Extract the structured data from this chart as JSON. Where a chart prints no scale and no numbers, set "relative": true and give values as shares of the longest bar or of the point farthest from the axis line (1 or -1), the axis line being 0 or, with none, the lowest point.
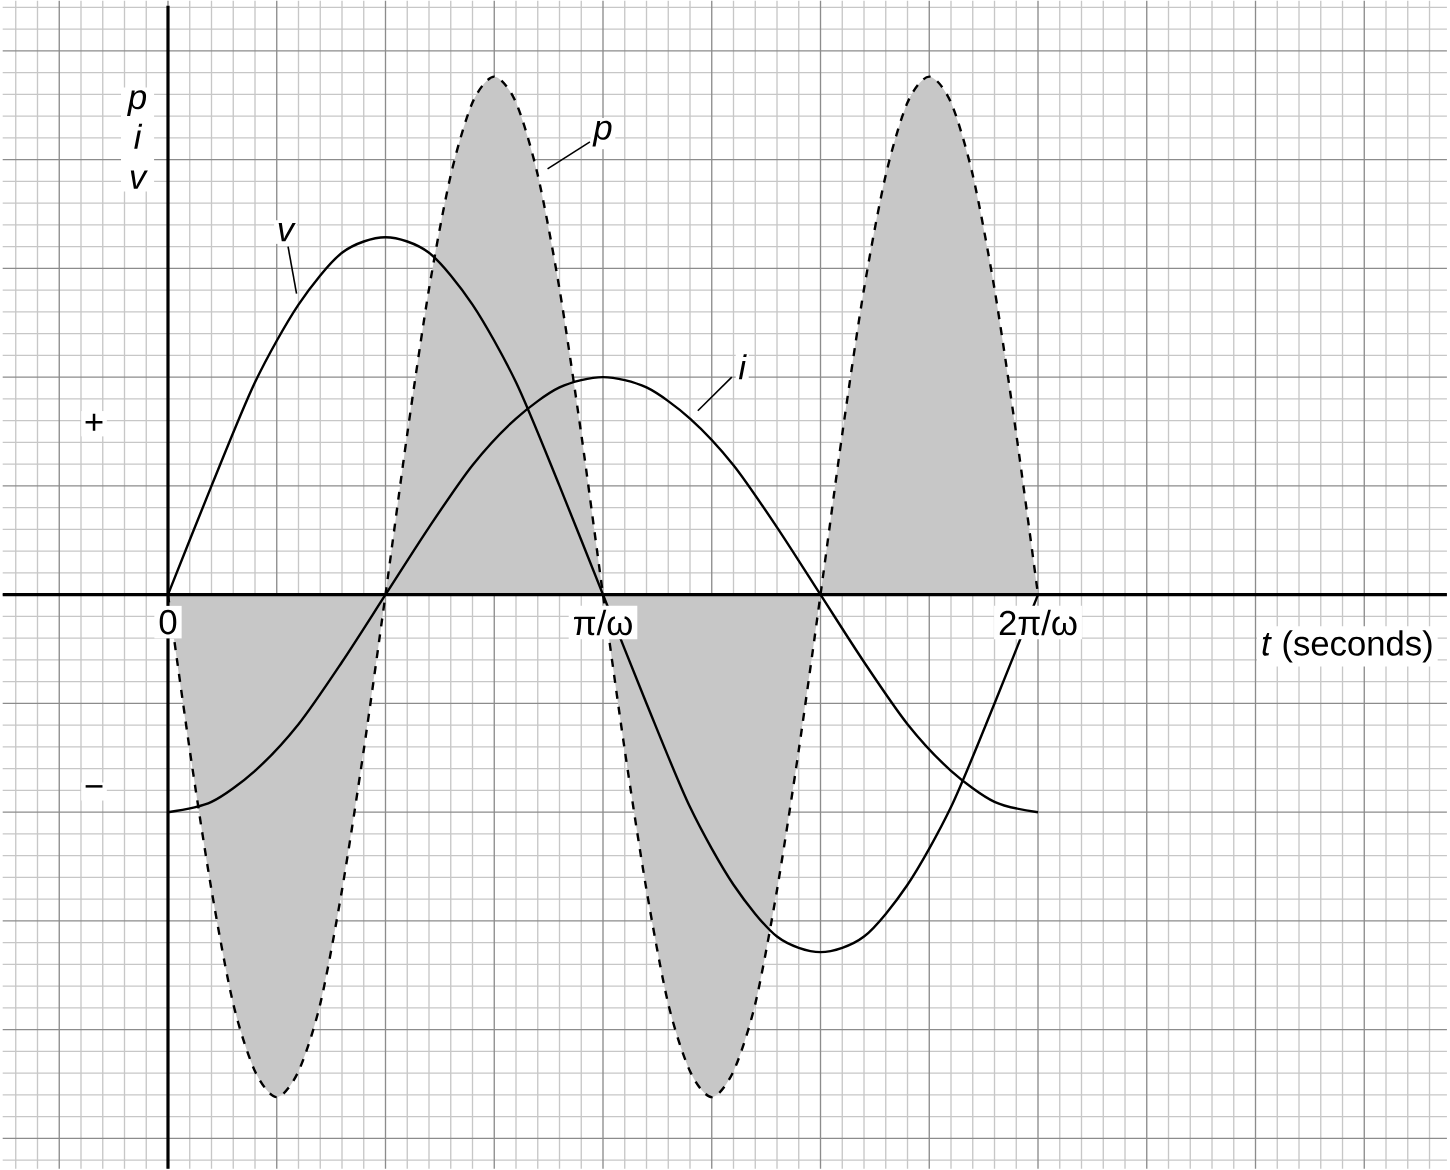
{
  "chart_data": {
    "type": "line",
    "relative": true,
    "ylabel": "p i v",
    "xlabel": "*t* (seconds)",
    "xlim": [
      -0.38,
      2.94
    ],
    "xticks": [
      {
        "value": 0,
        "label": "0"
      },
      {
        "value": 1,
        "label": "π/ω"
      },
      {
        "value": 2,
        "label": "2π/ω"
      }
    ],
    "grid": true,
    "marker": "none",
    "annotations": [
      "+",
      "−"
    ],
    "series": [
      {
        "name": "v",
        "color": "#000000",
        "line_style": "solid",
        "x": [
          0,
          0.1,
          0.2,
          0.3,
          0.4,
          0.5,
          0.6,
          0.7,
          0.8,
          0.9,
          1.0,
          1.1,
          1.2,
          1.3,
          1.4,
          1.5,
          1.6,
          1.7,
          1.8,
          1.9,
          2.0
        ],
        "values": [
          0,
          0.21,
          0.41,
          0.56,
          0.66,
          0.69,
          0.66,
          0.56,
          0.41,
          0.21,
          0,
          -0.21,
          -0.41,
          -0.56,
          -0.66,
          -0.69,
          -0.66,
          -0.56,
          -0.41,
          -0.21,
          0
        ]
      },
      {
        "name": "i",
        "color": "#000000",
        "line_style": "solid",
        "x": [
          0,
          0.1,
          0.2,
          0.3,
          0.4,
          0.5,
          0.6,
          0.7,
          0.8,
          0.9,
          1.0,
          1.1,
          1.2,
          1.3,
          1.4,
          1.5,
          1.6,
          1.7,
          1.8,
          1.9,
          2.0
        ],
        "values": [
          -0.42,
          -0.4,
          -0.34,
          -0.25,
          -0.13,
          0,
          0.13,
          0.25,
          0.34,
          0.4,
          0.42,
          0.4,
          0.34,
          0.25,
          0.13,
          0,
          -0.13,
          -0.25,
          -0.34,
          -0.4,
          -0.42
        ]
      },
      {
        "name": "p",
        "type": "area",
        "color": "#000000",
        "line_style": "dashed",
        "x": [
          0,
          0.05,
          0.1,
          0.15,
          0.2,
          0.25,
          0.3,
          0.35,
          0.4,
          0.45,
          0.5,
          0.55,
          0.6,
          0.65,
          0.7,
          0.75,
          0.8,
          0.85,
          0.9,
          0.95,
          1.0,
          1.05,
          1.1,
          1.15,
          1.2,
          1.25,
          1.3,
          1.35,
          1.4,
          1.45,
          1.5,
          1.55,
          1.6,
          1.65,
          1.7,
          1.75,
          1.8,
          1.85,
          1.9,
          1.95,
          2.0
        ],
        "values": [
          0,
          -0.3,
          -0.57,
          -0.79,
          -0.92,
          -0.97,
          -0.92,
          -0.79,
          -0.57,
          -0.3,
          0,
          0.31,
          0.59,
          0.81,
          0.95,
          1,
          0.95,
          0.81,
          0.59,
          0.31,
          0,
          -0.3,
          -0.57,
          -0.79,
          -0.92,
          -0.97,
          -0.92,
          -0.79,
          -0.57,
          -0.3,
          0,
          0.31,
          0.59,
          0.81,
          0.95,
          1,
          0.95,
          0.81,
          0.59,
          0.31,
          0
        ]
      }
    ]
  }
}
